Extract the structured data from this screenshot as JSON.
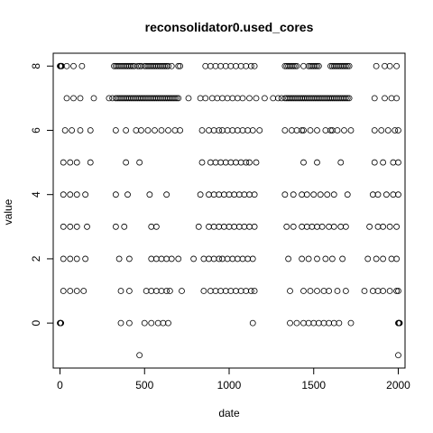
{
  "chart_data": {
    "type": "scatter",
    "title": "reconsolidator0.used_cores",
    "xlabel": "date",
    "ylabel": "value",
    "xlim": [
      -40,
      2040
    ],
    "ylim": [
      -1.4,
      8.4
    ],
    "x_ticks": [
      0,
      500,
      1000,
      1500,
      2000
    ],
    "y_ticks": [
      0,
      2,
      4,
      6,
      8
    ],
    "marker": "open-circle",
    "color": "#000000",
    "series": [
      {
        "y": 8,
        "x": [
          0,
          2,
          4,
          6,
          8,
          10,
          40,
          80,
          130,
          320,
          330,
          340,
          350,
          360,
          370,
          380,
          390,
          400,
          410,
          420,
          430,
          440,
          460,
          470,
          480,
          500,
          510,
          520,
          530,
          540,
          550,
          560,
          570,
          580,
          590,
          600,
          610,
          620,
          630,
          640,
          660,
          700,
          710,
          860,
          890,
          920,
          950,
          980,
          1010,
          1040,
          1070,
          1100,
          1130,
          1150,
          1330,
          1340,
          1350,
          1360,
          1370,
          1380,
          1390,
          1400,
          1440,
          1470,
          1480,
          1490,
          1500,
          1510,
          1520,
          1530,
          1600,
          1610,
          1620,
          1630,
          1640,
          1650,
          1660,
          1670,
          1680,
          1690,
          1700,
          1710,
          1870,
          1920,
          1950,
          1990
        ]
      },
      {
        "y": 7,
        "x": [
          40,
          80,
          120,
          200,
          290,
          310,
          330,
          340,
          350,
          360,
          370,
          380,
          390,
          400,
          410,
          420,
          430,
          440,
          450,
          460,
          470,
          480,
          490,
          500,
          510,
          520,
          530,
          540,
          550,
          560,
          570,
          580,
          590,
          600,
          610,
          620,
          630,
          640,
          650,
          660,
          670,
          680,
          690,
          700,
          760,
          830,
          860,
          900,
          930,
          960,
          990,
          1020,
          1050,
          1080,
          1120,
          1160,
          1210,
          1260,
          1290,
          1310,
          1330,
          1340,
          1350,
          1360,
          1370,
          1380,
          1390,
          1400,
          1410,
          1420,
          1430,
          1440,
          1450,
          1460,
          1470,
          1480,
          1490,
          1500,
          1510,
          1520,
          1530,
          1540,
          1550,
          1560,
          1570,
          1580,
          1590,
          1600,
          1610,
          1620,
          1630,
          1640,
          1650,
          1660,
          1670,
          1680,
          1690,
          1700,
          1710,
          1860,
          1920,
          1960,
          1990
        ]
      },
      {
        "y": 6,
        "x": [
          30,
          70,
          120,
          180,
          330,
          390,
          450,
          480,
          520,
          560,
          600,
          640,
          680,
          710,
          840,
          880,
          910,
          940,
          960,
          990,
          1020,
          1050,
          1080,
          1110,
          1140,
          1180,
          1330,
          1370,
          1400,
          1430,
          1440,
          1480,
          1520,
          1570,
          1600,
          1610,
          1640,
          1680,
          1720,
          1860,
          1900,
          1940,
          1980,
          2000
        ]
      },
      {
        "y": 5,
        "x": [
          20,
          60,
          100,
          180,
          390,
          470,
          840,
          890,
          920,
          950,
          980,
          1010,
          1040,
          1070,
          1100,
          1120,
          1160,
          1440,
          1520,
          1660,
          1860,
          1910,
          1970,
          2000
        ]
      },
      {
        "y": 4,
        "x": [
          20,
          60,
          100,
          150,
          330,
          400,
          530,
          630,
          830,
          880,
          910,
          940,
          970,
          1000,
          1030,
          1060,
          1090,
          1120,
          1150,
          1330,
          1380,
          1430,
          1460,
          1500,
          1540,
          1580,
          1620,
          1700,
          1850,
          1880,
          1930,
          1970,
          2000
        ]
      },
      {
        "y": 3,
        "x": [
          20,
          60,
          100,
          160,
          330,
          380,
          540,
          570,
          820,
          880,
          910,
          940,
          970,
          1000,
          1030,
          1060,
          1090,
          1120,
          1150,
          1340,
          1380,
          1430,
          1460,
          1490,
          1520,
          1550,
          1590,
          1620,
          1660,
          1690,
          1830,
          1880,
          1910,
          1950,
          1990
        ]
      },
      {
        "y": 2,
        "x": [
          20,
          60,
          100,
          150,
          350,
          410,
          540,
          570,
          600,
          630,
          660,
          700,
          790,
          850,
          880,
          910,
          940,
          960,
          990,
          1020,
          1050,
          1080,
          1110,
          1140,
          1350,
          1430,
          1470,
          1520,
          1570,
          1610,
          1670,
          1820,
          1870,
          1910,
          1960,
          1990
        ]
      },
      {
        "y": 1,
        "x": [
          20,
          60,
          100,
          140,
          360,
          410,
          510,
          540,
          570,
          600,
          630,
          650,
          720,
          850,
          890,
          920,
          950,
          980,
          1010,
          1040,
          1070,
          1100,
          1130,
          1150,
          1360,
          1440,
          1480,
          1520,
          1560,
          1590,
          1640,
          1690,
          1800,
          1850,
          1880,
          1910,
          1950,
          1990,
          2000
        ]
      },
      {
        "y": 0,
        "x": [
          0,
          2,
          4,
          6,
          360,
          410,
          500,
          540,
          580,
          610,
          640,
          1140,
          1360,
          1400,
          1440,
          1470,
          1500,
          1530,
          1560,
          1590,
          1620,
          1650,
          1720,
          2000,
          2002,
          2004,
          2006,
          2008
        ]
      },
      {
        "y": -1,
        "x": [
          470,
          2000
        ]
      }
    ]
  }
}
